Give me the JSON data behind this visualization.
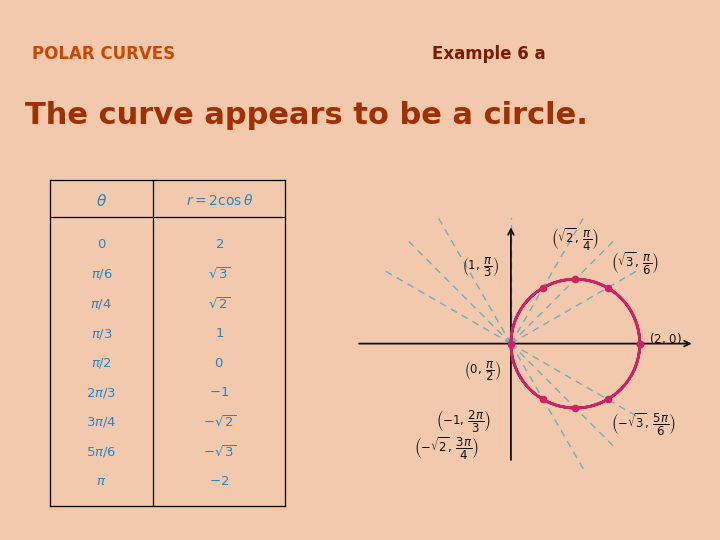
{
  "title_left": "POLAR CURVES",
  "title_right": "Example 6 a",
  "subtitle": "The curve appears to be a circle.",
  "bg_color": "#f2c9ac",
  "header_bg_color": "#e8a882",
  "title_left_color": "#c84800",
  "title_right_color": "#7a1a00",
  "subtitle_color": "#a03000",
  "table_text_color": "#2288cc",
  "table_frame_color": "#cc8855",
  "plot_frame_color": "#cc8855",
  "curve_color": "#cc2266",
  "ray_color": "#55aacc",
  "point_color": "#cc2266",
  "axis_color": "#111111",
  "annotation_color": "#111111"
}
